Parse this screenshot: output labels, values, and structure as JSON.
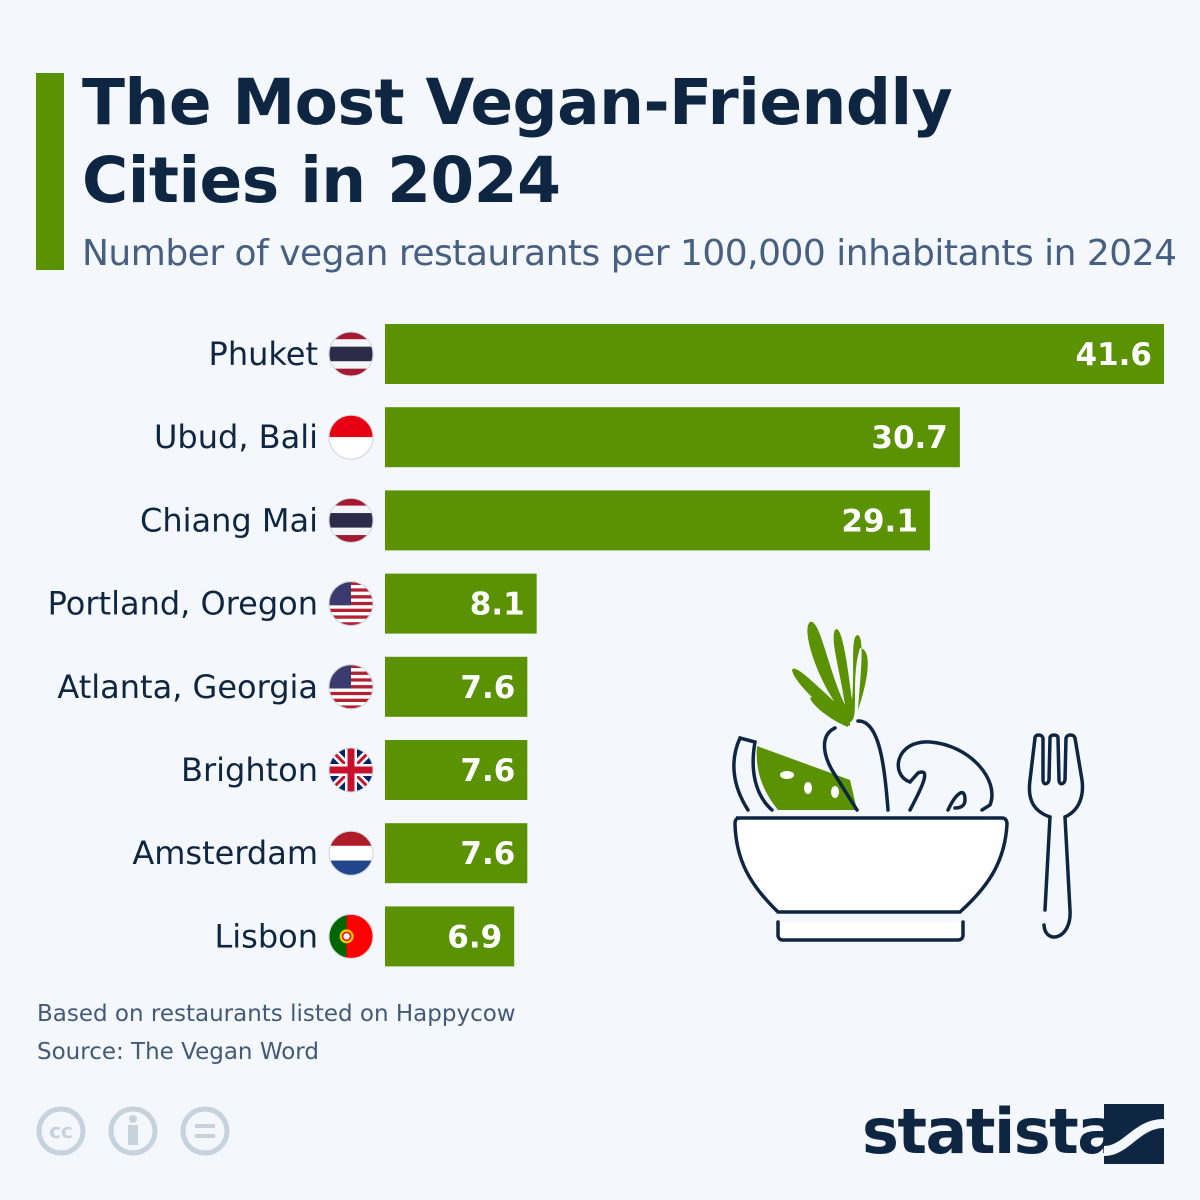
{
  "header": {
    "title_line1": "The Most Vegan-Friendly",
    "title_line2": "Cities in 2024",
    "subtitle": "Number of vegan restaurants per 100,000 inhabitants in 2024"
  },
  "chart_data": {
    "type": "bar",
    "orientation": "horizontal",
    "title": "The Most Vegan-Friendly Cities in 2024",
    "subtitle": "Number of vegan restaurants per 100,000 inhabitants in 2024",
    "categories": [
      "Phuket",
      "Ubud, Bali",
      "Chiang Mai",
      "Portland, Oregon",
      "Atlanta, Georgia",
      "Brighton",
      "Amsterdam",
      "Lisbon"
    ],
    "flags": [
      "thailand",
      "indonesia",
      "thailand",
      "usa",
      "usa",
      "uk",
      "netherlands",
      "portugal"
    ],
    "values": [
      41.6,
      30.7,
      29.1,
      8.1,
      7.6,
      7.6,
      7.6,
      6.9
    ],
    "value_labels": [
      "41.6",
      "30.7",
      "29.1",
      "8.1",
      "7.6",
      "7.6",
      "7.6",
      "6.9"
    ],
    "xlim": [
      0,
      41.6
    ],
    "grid": false,
    "bar_color": "#5a9203",
    "label_color": "#ffffff"
  },
  "footer": {
    "note": "Based on restaurants listed on Happycow",
    "source": "Source: The Vegan Word",
    "logo": "statista",
    "license_icons": [
      "cc-icon",
      "attribution-icon",
      "no-derivatives-icon"
    ]
  },
  "colors": {
    "background": "#f4f7fb",
    "accent": "#5a9203",
    "title": "#0f2642",
    "subtitle": "#475f80"
  }
}
